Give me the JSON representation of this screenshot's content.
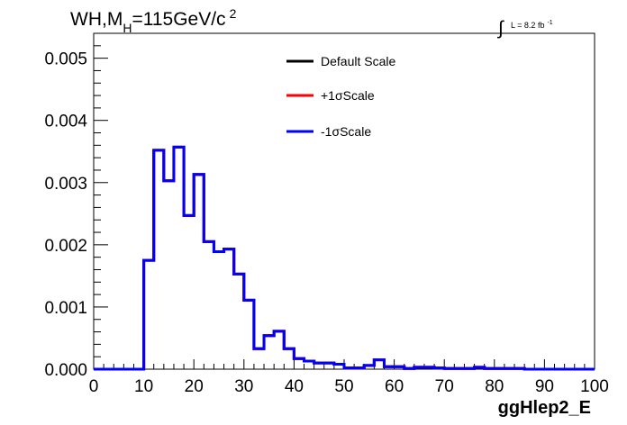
{
  "header": {
    "title_prefix": "WH,M",
    "title_subscript": "H",
    "title_value": "=115GeV/c",
    "title_superscript": "2",
    "lumi_integral": "∫",
    "lumi_text": "L = 8.2 fb",
    "lumi_superscript": "-1"
  },
  "chart_data": {
    "type": "histogram",
    "xlabel": "ggHlep2_E",
    "ylabel": "",
    "xlim": [
      0,
      100
    ],
    "ylim": [
      0,
      0.0054
    ],
    "x_ticks": [
      "0",
      "10",
      "20",
      "30",
      "40",
      "50",
      "60",
      "70",
      "80",
      "90",
      "100"
    ],
    "y_ticks": [
      "0.000",
      "0.001",
      "0.002",
      "0.003",
      "0.004",
      "0.005"
    ],
    "bin_edges": [
      0,
      2,
      4,
      6,
      8,
      10,
      12,
      14,
      16,
      18,
      20,
      22,
      24,
      26,
      28,
      30,
      32,
      34,
      36,
      38,
      40,
      42,
      44,
      46,
      48,
      50,
      52,
      54,
      56,
      58,
      60,
      62,
      64,
      66,
      68,
      70,
      72,
      74,
      76,
      78,
      80,
      82,
      84,
      86,
      88,
      90,
      92,
      94,
      96,
      98,
      100
    ],
    "legend_position": "top-center",
    "series": [
      {
        "name": "Default Scale",
        "color": "#000000",
        "values": [
          0,
          0,
          0,
          0,
          0,
          0.00175,
          0.00352,
          0.00303,
          0.00357,
          0.00247,
          0.00313,
          0.00205,
          0.00189,
          0.00193,
          0.00153,
          0.00111,
          0.00033,
          0.00054,
          0.00061,
          0.00033,
          0.00017,
          0.00013,
          0.0001,
          0.0001,
          8e-05,
          2e-05,
          2e-05,
          6e-05,
          0.00015,
          4e-05,
          4e-05,
          1e-05,
          3e-05,
          3e-05,
          2e-05,
          1e-05,
          1e-05,
          1e-05,
          3e-05,
          1e-05,
          1e-05,
          1e-05,
          1e-05,
          0.0,
          0.0,
          0.0,
          0.0,
          0.0,
          0.0,
          0.0
        ]
      },
      {
        "name": "+1σScale",
        "color": "#ff0000",
        "values": [
          0,
          0,
          0,
          0,
          0,
          0.00175,
          0.00352,
          0.00303,
          0.00357,
          0.00247,
          0.00313,
          0.00205,
          0.00189,
          0.00193,
          0.00153,
          0.00111,
          0.00033,
          0.00054,
          0.00061,
          0.00033,
          0.00017,
          0.00013,
          0.0001,
          0.0001,
          8e-05,
          2e-05,
          2e-05,
          6e-05,
          0.00015,
          4e-05,
          4e-05,
          1e-05,
          3e-05,
          3e-05,
          2e-05,
          1e-05,
          1e-05,
          1e-05,
          3e-05,
          1e-05,
          1e-05,
          1e-05,
          1e-05,
          0.0,
          0.0,
          0.0,
          0.0,
          0.0,
          0.0,
          0.0
        ]
      },
      {
        "name": "-1σScale",
        "color": "#0000ff",
        "values": [
          0,
          0,
          0,
          0,
          0,
          0.00175,
          0.00352,
          0.00303,
          0.00357,
          0.00247,
          0.00313,
          0.00205,
          0.00189,
          0.00193,
          0.00153,
          0.00111,
          0.00033,
          0.00054,
          0.00061,
          0.00033,
          0.00017,
          0.00013,
          0.0001,
          0.0001,
          8e-05,
          2e-05,
          2e-05,
          6e-05,
          0.00015,
          4e-05,
          4e-05,
          1e-05,
          3e-05,
          3e-05,
          2e-05,
          1e-05,
          1e-05,
          1e-05,
          3e-05,
          1e-05,
          1e-05,
          1e-05,
          1e-05,
          0.0,
          0.0,
          0.0,
          0.0,
          0.0,
          0.0,
          0.0
        ]
      }
    ]
  }
}
